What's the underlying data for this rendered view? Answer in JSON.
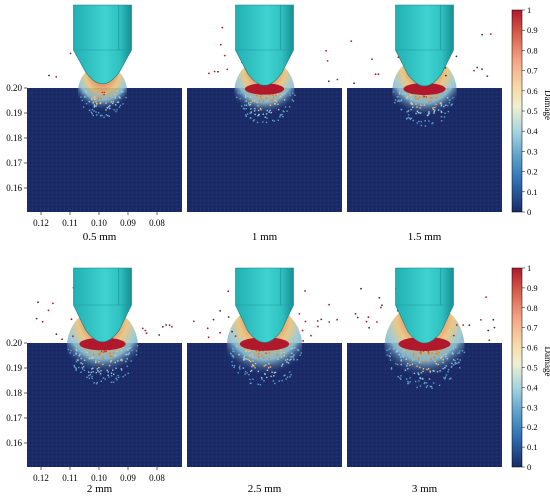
{
  "colorbar": {
    "title": "Damage",
    "ticks": [
      "1",
      "0.9",
      "0.8",
      "0.7",
      "0.6",
      "0.5",
      "0.4",
      "0.3",
      "0.2",
      "0.1",
      "0"
    ],
    "colors": [
      "#b2182b",
      "#d6604d",
      "#f4a582",
      "#f7d9a6",
      "#f0f0d0",
      "#a6d5e0",
      "#5fa3cc",
      "#2f6eb3",
      "#1e3f8c",
      "#162a66"
    ]
  },
  "axes": {
    "y_ticks": [
      "0.20",
      "0.19",
      "0.18",
      "0.17",
      "0.16"
    ],
    "x_ticks": [
      "0.12",
      "0.11",
      "0.10",
      "0.09",
      "0.08"
    ]
  },
  "panels": [
    {
      "label": "0.5 mm",
      "damage_spread": 0.3
    },
    {
      "label": "1 mm",
      "damage_spread": 0.55
    },
    {
      "label": "1.5 mm",
      "damage_spread": 0.65
    },
    {
      "label": "2 mm",
      "damage_spread": 0.8
    },
    {
      "label": "2.5 mm",
      "damage_spread": 0.9
    },
    {
      "label": "3 mm",
      "damage_spread": 1.0
    }
  ],
  "colors": {
    "specimen": "#1a2a66",
    "tool_light": "#3fd2d0",
    "tool_mid": "#27b6b8",
    "tool_dark": "#168f93",
    "damage_high": "#b2182b"
  }
}
